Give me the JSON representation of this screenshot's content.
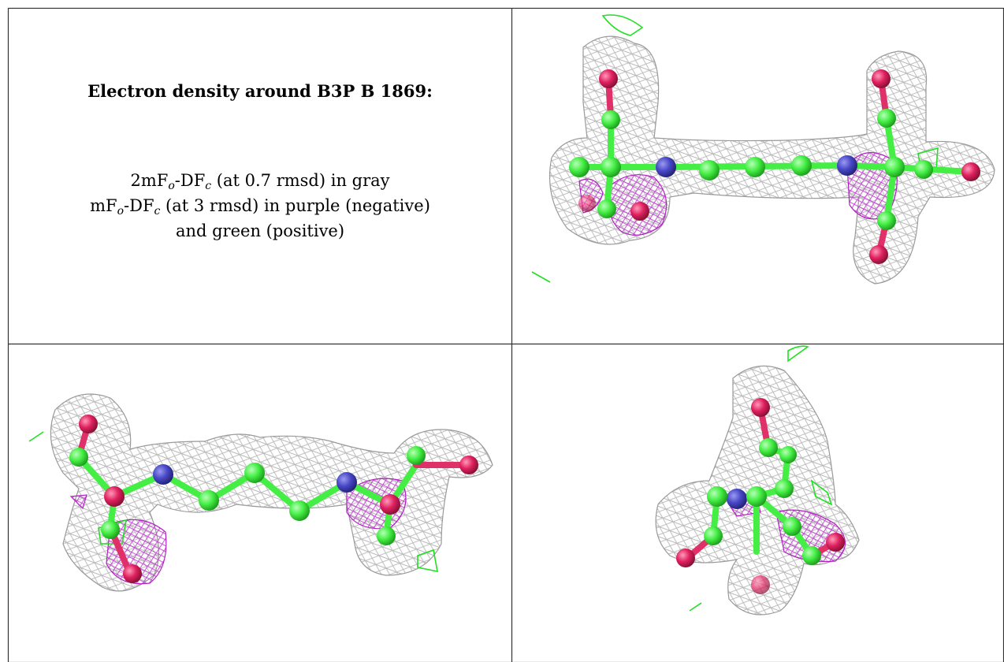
{
  "header": {
    "title": "Electron density around B3P B 1869:"
  },
  "legend": {
    "lines": [
      [
        "2mF",
        "o",
        "-DF",
        "c",
        " (at 0.7 rmsd) in gray"
      ],
      [
        "mF",
        "o",
        "-DF",
        "c",
        " (at 3 rmsd) in purple (negative)"
      ],
      [
        "and green (positive)"
      ]
    ]
  }
}
